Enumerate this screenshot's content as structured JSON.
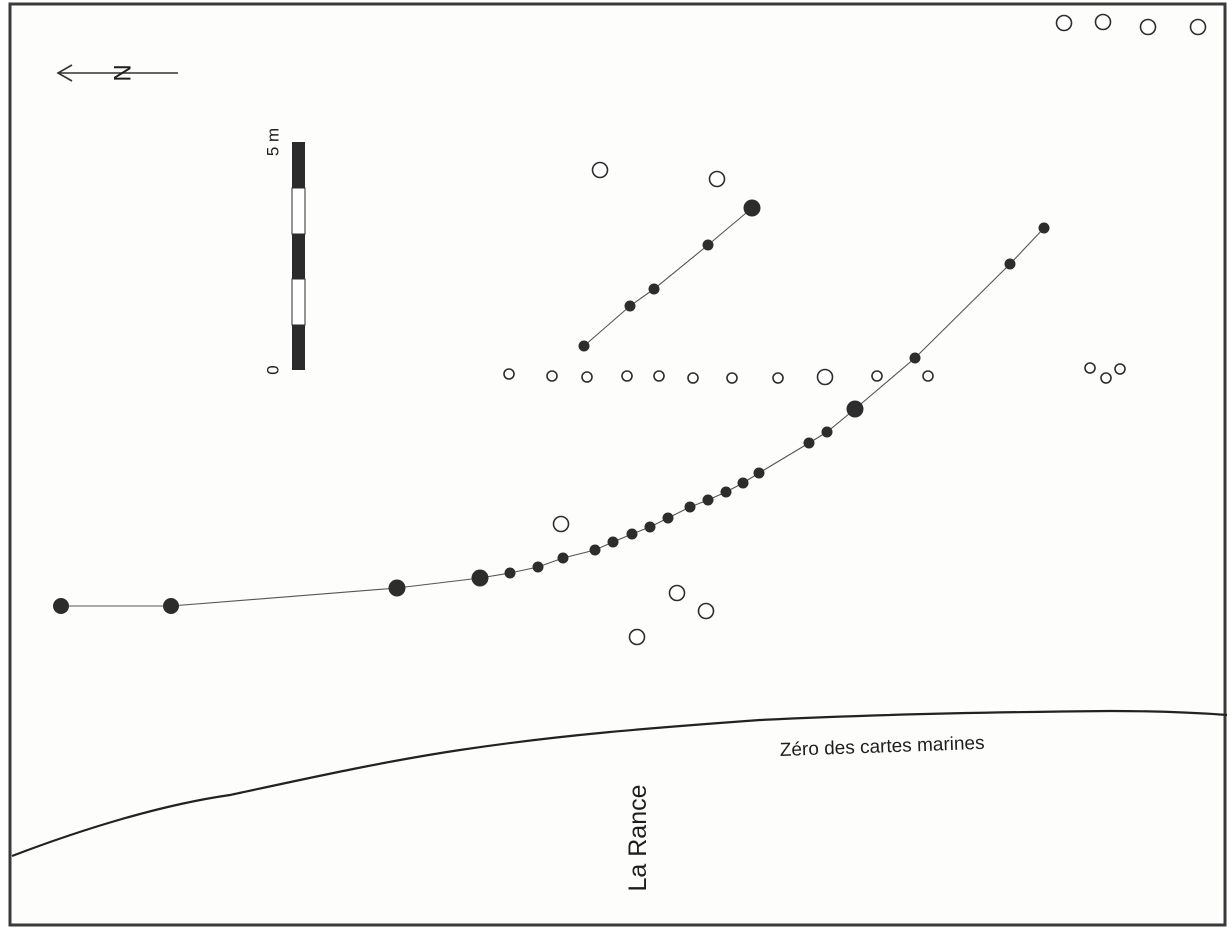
{
  "north_arrow": {
    "label": "N",
    "icon": "north-arrow-icon"
  },
  "scale_bar": {
    "min_label": "0",
    "max_label": "5 m"
  },
  "labels": {
    "chart_datum": "Zéro des cartes marines",
    "river": "La Rance"
  },
  "legend_symbols": {
    "filled_post": "post-filled-circle-icon",
    "open_post": "post-open-circle-icon"
  },
  "colors": {
    "ink": "#2d2d2d",
    "paper": "#fdfdfc"
  }
}
